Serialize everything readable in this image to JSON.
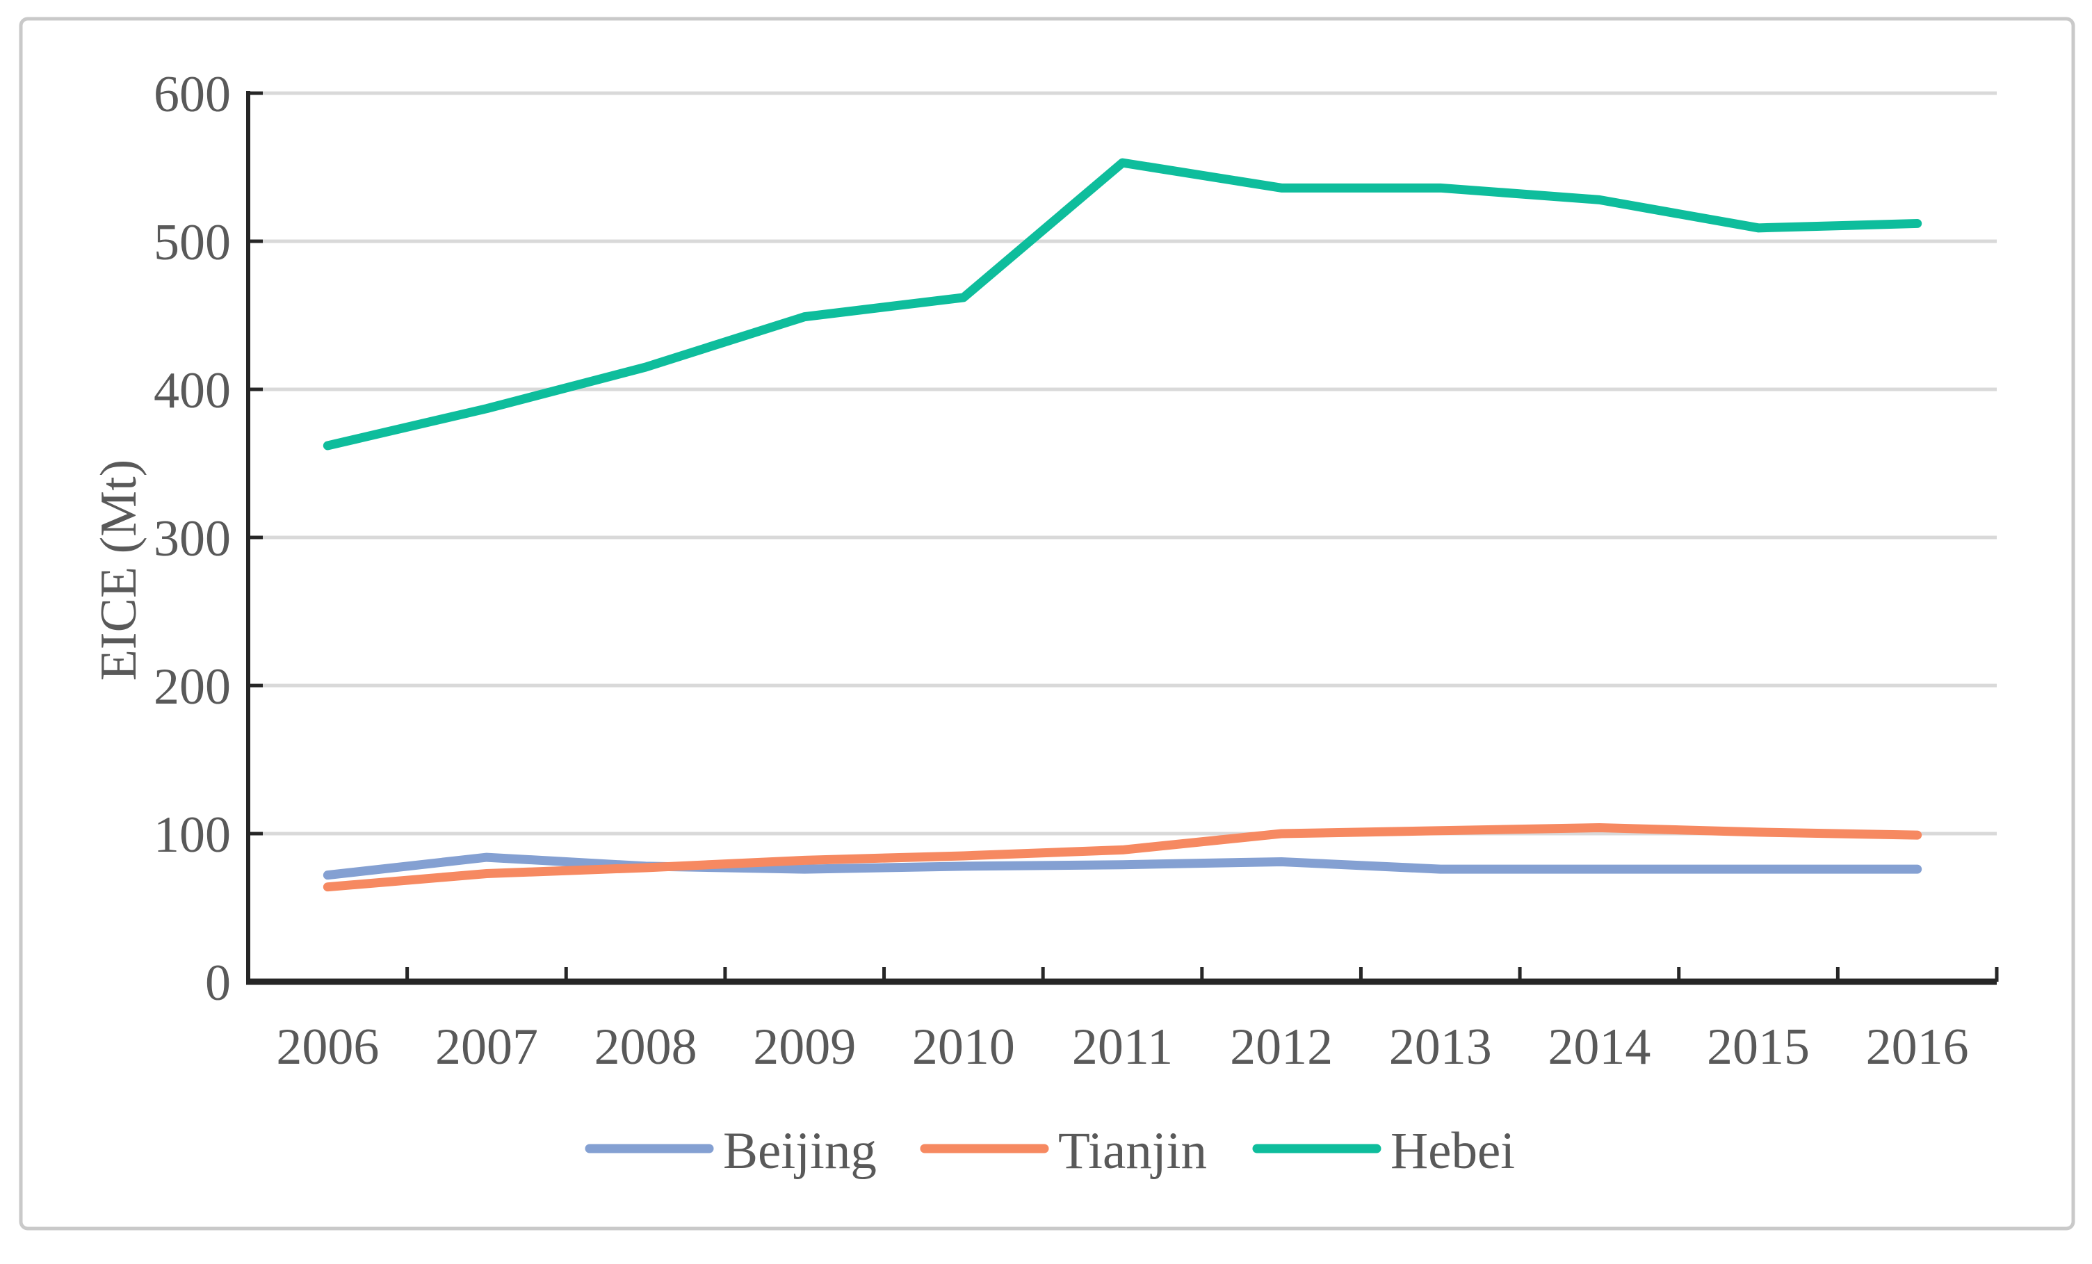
{
  "figure": {
    "background_color": "#ffffff",
    "border_color": "#c9c9c9"
  },
  "chart_data": {
    "type": "line",
    "title": "",
    "xlabel": "",
    "ylabel": "EICE (Mt)",
    "x": [
      "2006",
      "2007",
      "2008",
      "2009",
      "2010",
      "2011",
      "2012",
      "2013",
      "2014",
      "2015",
      "2016"
    ],
    "yticks": [
      0,
      100,
      200,
      300,
      400,
      500,
      600
    ],
    "ylim": [
      0,
      600
    ],
    "grid": true,
    "gridline_color": "#d9d9d9",
    "axis_color": "#262626",
    "tick_label_color": "#595959",
    "legend_position": "bottom",
    "series": [
      {
        "name": "Beijing",
        "color": "#84A0D2",
        "values": [
          72,
          84,
          78,
          76,
          78,
          79,
          81,
          76,
          76,
          76,
          76
        ]
      },
      {
        "name": "Tianjin",
        "color": "#F68961",
        "values": [
          64,
          73,
          77,
          82,
          85,
          89,
          100,
          102,
          104,
          101,
          99
        ]
      },
      {
        "name": "Hebei",
        "color": "#0EBD9C",
        "values": [
          362,
          387,
          415,
          449,
          462,
          553,
          536,
          536,
          528,
          509,
          512
        ]
      }
    ]
  }
}
